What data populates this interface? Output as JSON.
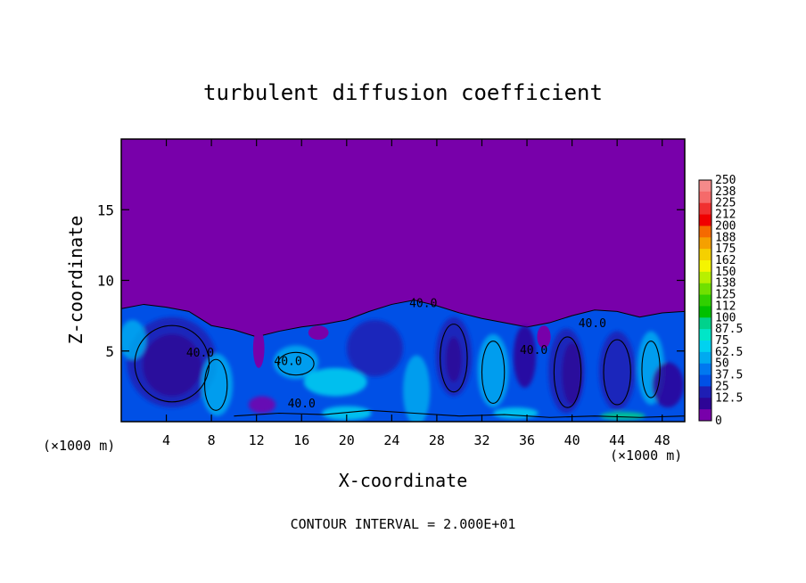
{
  "chart_data": {
    "type": "heatmap",
    "title": "turbulent diffusion coefficient",
    "xlabel": "X-coordinate",
    "ylabel": "Z-coordinate",
    "x_unit_left": "(×1000 m)",
    "x_unit_right": "(×1000 m)",
    "footer": "CONTOUR INTERVAL = 2.000E+01",
    "xlim": [
      0,
      50
    ],
    "ylim": [
      0,
      20
    ],
    "x_ticks": [
      4,
      8,
      12,
      16,
      20,
      24,
      28,
      32,
      36,
      40,
      44,
      48
    ],
    "y_ticks": [
      5,
      10,
      15
    ],
    "colorbar": {
      "labels": [
        "250",
        "238",
        "225",
        "212",
        "200",
        "188",
        "175",
        "162",
        "150",
        "138",
        "125",
        "112",
        "100",
        "87.5",
        "75",
        "62.5",
        "50",
        "37.5",
        "25",
        "12.5",
        "0"
      ],
      "colors": [
        "#f58a8a",
        "#f56a6a",
        "#f03030",
        "#f00000",
        "#f56a00",
        "#f5a000",
        "#f5d000",
        "#f5f500",
        "#b8f000",
        "#70e000",
        "#30d000",
        "#00c000",
        "#00d28c",
        "#00e6c8",
        "#00d2f0",
        "#00aaf0",
        "#0078f0",
        "#0050e6",
        "#1e1eb4",
        "#2d0596",
        "#7800aa"
      ]
    },
    "contour_labels": [
      {
        "text": "40.0",
        "x": 26.8,
        "z": 8.1
      },
      {
        "text": "40.0",
        "x": 41.8,
        "z": 6.7
      },
      {
        "text": "40.0",
        "x": 14.8,
        "z": 4.0
      },
      {
        "text": "40.0",
        "x": 16.0,
        "z": 1.0
      },
      {
        "text": "40.0",
        "x": 7.0,
        "z": 4.6
      },
      {
        "text": "40.0",
        "x": 36.6,
        "z": 4.8
      }
    ],
    "top_profile": [
      [
        0,
        8.0
      ],
      [
        2,
        8.3
      ],
      [
        4,
        8.1
      ],
      [
        6,
        7.8
      ],
      [
        8,
        6.8
      ],
      [
        10,
        6.5
      ],
      [
        12,
        6.0
      ],
      [
        14,
        6.4
      ],
      [
        16,
        6.7
      ],
      [
        18,
        6.9
      ],
      [
        20,
        7.2
      ],
      [
        22,
        7.8
      ],
      [
        24,
        8.3
      ],
      [
        26,
        8.6
      ],
      [
        28,
        8.2
      ],
      [
        30,
        7.7
      ],
      [
        32,
        7.3
      ],
      [
        34,
        7.0
      ],
      [
        36,
        6.7
      ],
      [
        38,
        7.0
      ],
      [
        40,
        7.5
      ],
      [
        42,
        7.9
      ],
      [
        44,
        7.8
      ],
      [
        46,
        7.4
      ],
      [
        48,
        7.7
      ],
      [
        50,
        7.8
      ]
    ]
  }
}
